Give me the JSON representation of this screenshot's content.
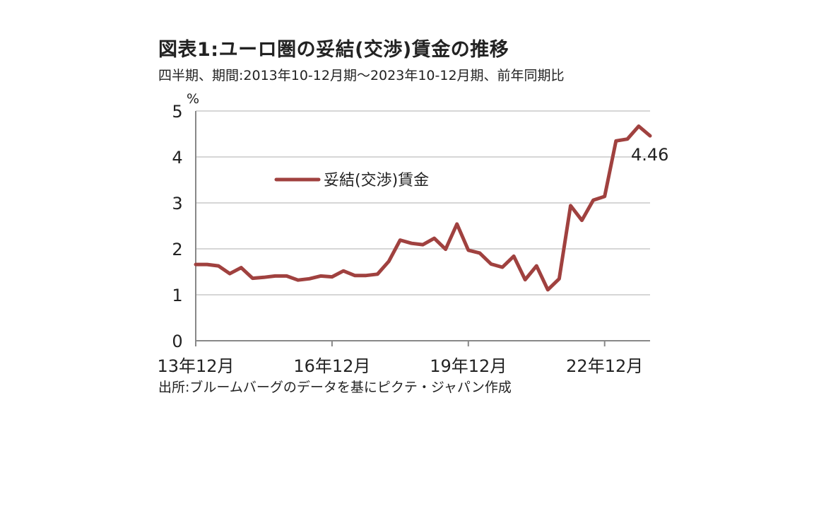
{
  "title": "図表1:ユーロ圏の妥結(交渉)賃金の推移",
  "subtitle": "四半期、期間:2013年10-12月期〜2023年10-12月期、前年同期比",
  "source": "出所:ブルームバーグのデータを基にピクテ・ジャパン作成",
  "colors": {
    "series": "#a0413f",
    "grid": "#c8c8c8",
    "axis": "#888888"
  },
  "chart_data": {
    "type": "line",
    "ylabel": "%",
    "ylim": [
      0,
      5
    ],
    "yticks": [
      "0",
      "1",
      "2",
      "3",
      "4",
      "5"
    ],
    "xtick_labels": [
      "13年12月",
      "16年12月",
      "19年12月",
      "22年12月"
    ],
    "grid": true,
    "legend_position": "top-left",
    "series": [
      {
        "name": "妥結(交渉)賃金",
        "values": [
          1.66,
          1.66,
          1.63,
          1.46,
          1.59,
          1.36,
          1.38,
          1.41,
          1.41,
          1.32,
          1.35,
          1.41,
          1.39,
          1.52,
          1.42,
          1.42,
          1.45,
          1.73,
          2.19,
          2.12,
          2.09,
          2.23,
          1.99,
          2.54,
          1.97,
          1.91,
          1.67,
          1.6,
          1.84,
          1.33,
          1.63,
          1.11,
          1.35,
          2.94,
          2.62,
          3.06,
          3.14,
          4.35,
          4.39,
          4.67,
          4.46
        ]
      }
    ],
    "last_value_label": "4.46"
  }
}
